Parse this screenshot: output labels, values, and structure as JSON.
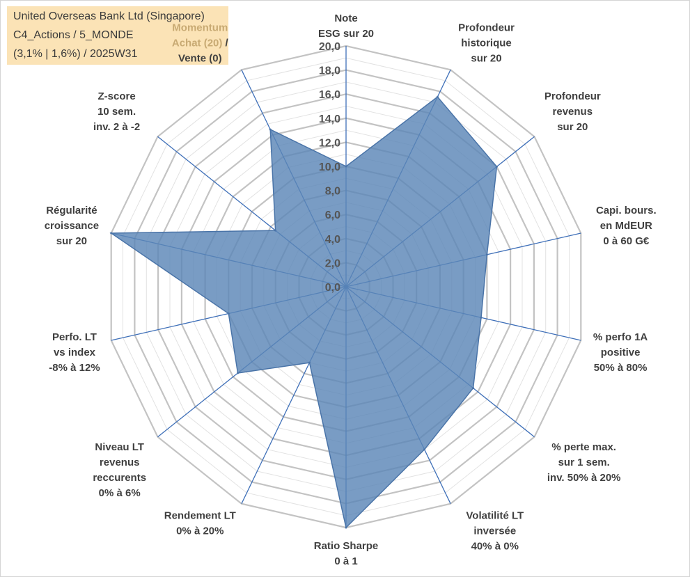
{
  "info_box": {
    "line1": "United Overseas Bank Ltd (Singapore)",
    "line2": "C4_Actions / 5_MONDE",
    "line3": "(3,1% | 1,6%) / 2025W31"
  },
  "chart_data": {
    "type": "radar",
    "axes": [
      [
        "Note",
        "ESG sur 20"
      ],
      [
        "Profondeur",
        "historique",
        "sur 20"
      ],
      [
        "Profondeur",
        "revenus",
        "sur 20"
      ],
      [
        "Capi. bours.",
        "en MdEUR",
        "0 à 60 G€"
      ],
      [
        "% perfo 1A",
        "positive",
        "50% à 80%"
      ],
      [
        "% perte max.",
        "sur 1 sem.",
        "inv. 50% à 20%"
      ],
      [
        "Volatilité LT",
        "inversée",
        "40% à 0%"
      ],
      [
        "Ratio Sharpe",
        "0 à 1"
      ],
      [
        "Rendement LT",
        "0% à 20%"
      ],
      [
        "Niveau LT",
        "revenus",
        "reccurents",
        "0% à 6%"
      ],
      [
        "Perfo. LT",
        "vs index",
        "-8% à 12%"
      ],
      [
        "Régularité",
        "croissance",
        "sur 20"
      ],
      [
        "Z-score",
        "10 sem.",
        "inv. 2 à -2"
      ],
      [
        "Momentum",
        "Achat (20) /",
        "Vente (0)"
      ]
    ],
    "series": [
      {
        "values": [
          10.0,
          17.5,
          16.0,
          12.0,
          11.5,
          13.5,
          15.0,
          20.0,
          7.0,
          11.5,
          10.0,
          20.0,
          7.5,
          14.5
        ]
      }
    ],
    "rlim": [
      0,
      20
    ],
    "r_ticks": [
      "0,0",
      "2,0",
      "4,0",
      "6,0",
      "8,0",
      "10,0",
      "12,0",
      "14,0",
      "16,0",
      "18,0",
      "20,0"
    ],
    "highlight_text": "Momentum Achat (20)",
    "colors": {
      "fill": "#5b86b7",
      "stroke": "#4a74a8",
      "spoke": "#3e6fb8",
      "grid_major": "#c3c3c3",
      "grid_minor": "#e2e2e2"
    }
  }
}
